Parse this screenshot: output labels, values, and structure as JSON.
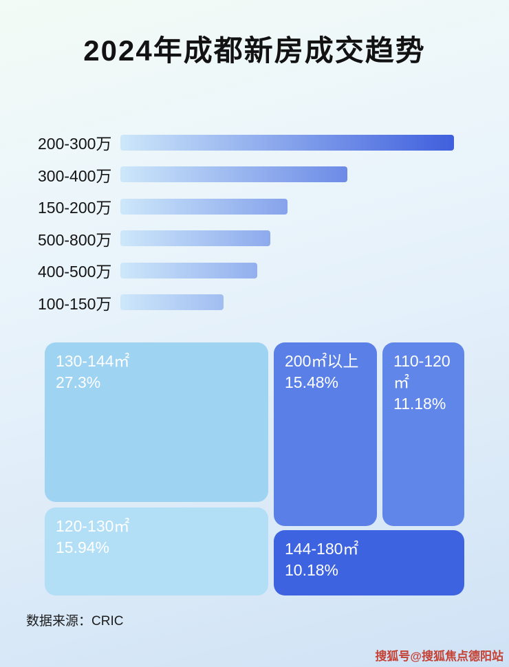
{
  "page": {
    "title": "2024年成都新房成交趋势",
    "source": "数据来源：CRIC",
    "watermark": "搜狐号@搜狐焦点德阳站"
  },
  "colors": {
    "bar_gradient_start": "#cde7fa",
    "bar_gradient_end": "#3f5fdd",
    "treemap_light_1": "#9fd3f2",
    "treemap_light_2": "#b2def6",
    "treemap_medium": "#5a80e8",
    "treemap_medium_2": "#6186ea",
    "treemap_dark": "#3e63e0",
    "watermark_color": "#c54134"
  },
  "chart_data": [
    {
      "type": "bar",
      "orientation": "horizontal",
      "title": "2024年成都新房成交趋势",
      "categories": [
        "200-300万",
        "300-400万",
        "150-200万",
        "500-800万",
        "400-500万",
        "100-150万"
      ],
      "values": [
        100,
        68,
        50,
        45,
        41,
        31
      ],
      "value_note": "no numeric labels shown in image; values are estimated relative bar lengths as % of longest bar",
      "xlabel": "",
      "ylabel": "",
      "grid": false,
      "legend": false
    },
    {
      "type": "treemap",
      "unit": "%",
      "items": [
        {
          "label": "130-144㎡",
          "value": 27.3
        },
        {
          "label": "200㎡以上",
          "value": 15.48
        },
        {
          "label": "110-120㎡",
          "value": 11.18
        },
        {
          "label": "120-130㎡",
          "value": 15.94
        },
        {
          "label": "144-180㎡",
          "value": 10.18
        }
      ]
    }
  ]
}
